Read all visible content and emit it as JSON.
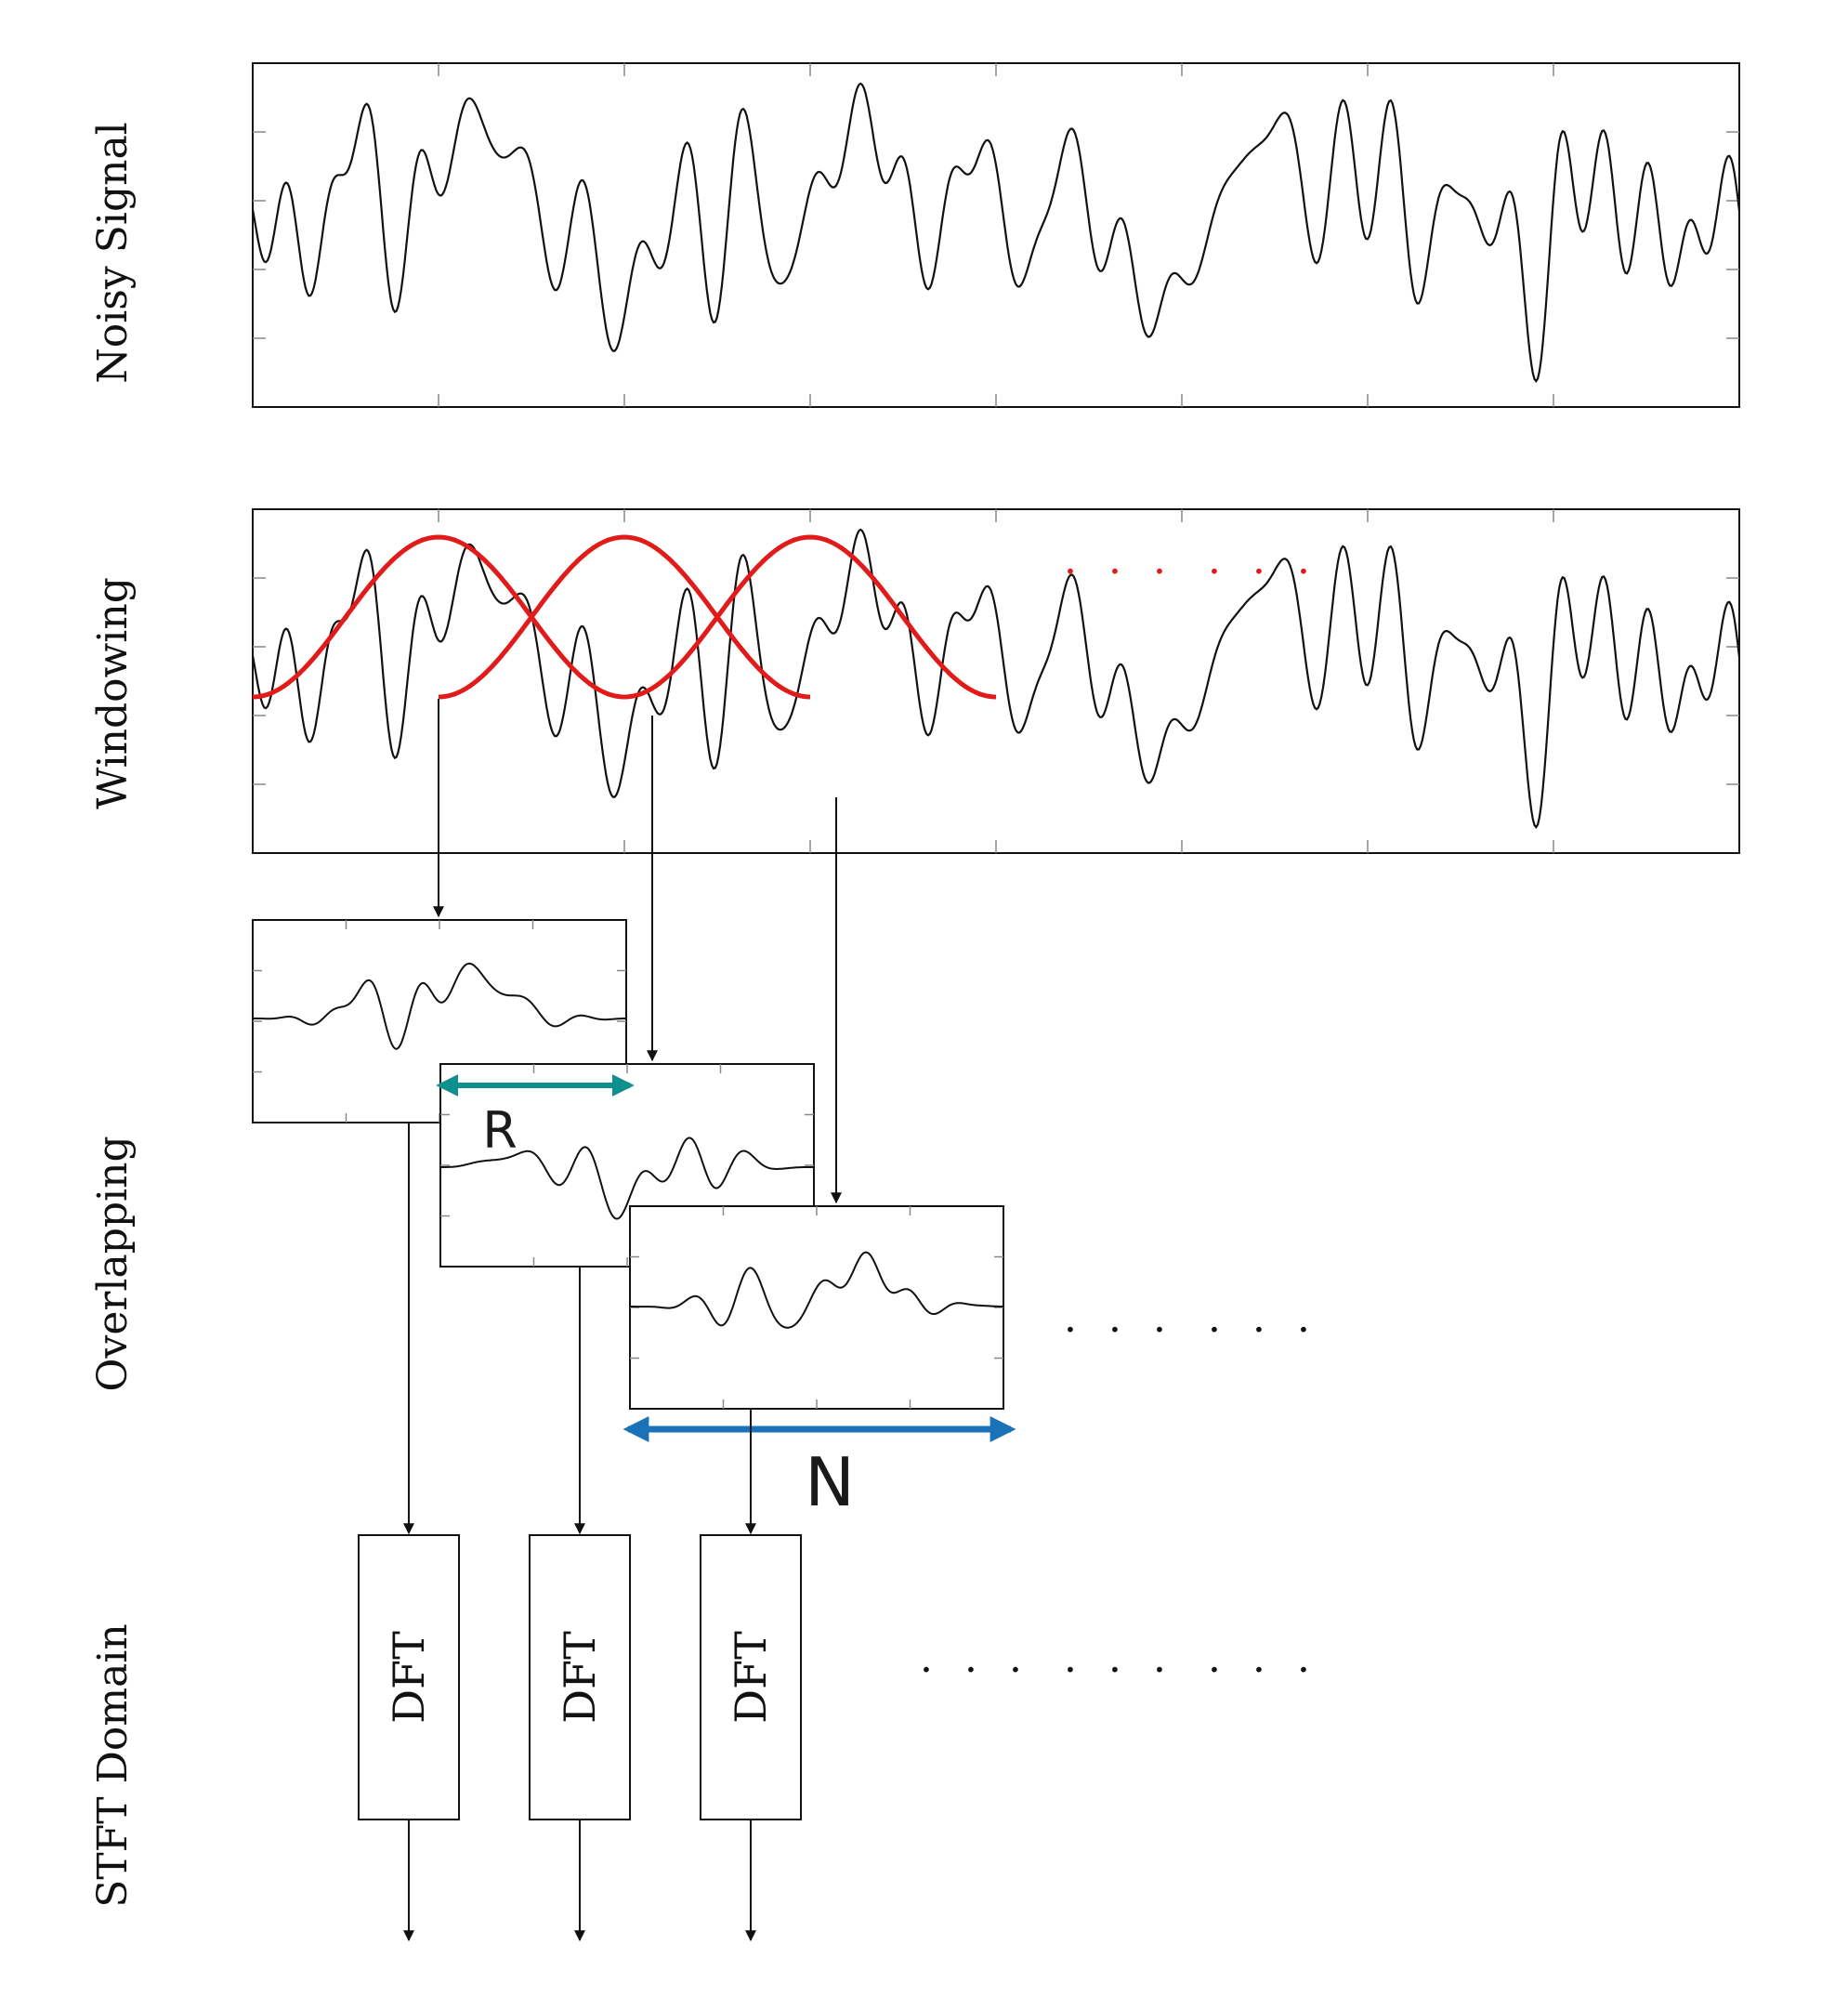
{
  "rows": {
    "noisy": "Noisy Signal",
    "windowing": "Windowing",
    "overlapping": "Overlapping",
    "stft": "STFT Domain"
  },
  "dft": {
    "label": "DFT",
    "count": 3
  },
  "dims": {
    "hop": "R",
    "length": "N"
  },
  "ellipsis": "· · ·",
  "colors": {
    "signal": "#111111",
    "window": "#e11a1a",
    "hop_arrow": "#0f9090",
    "length_arrow": "#1a72b8",
    "dots_red": "#e11a1a",
    "dots_black": "#111111"
  }
}
